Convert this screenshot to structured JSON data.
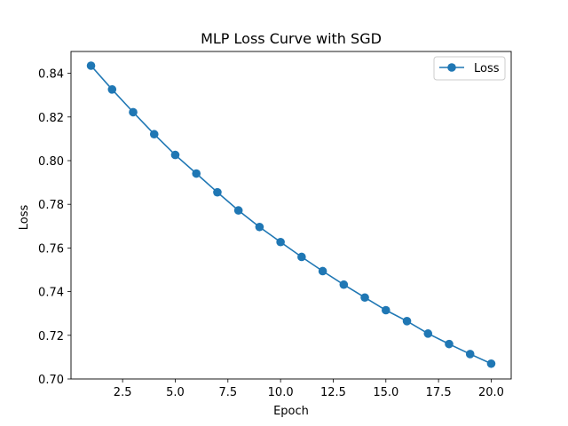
{
  "chart_data": {
    "type": "line",
    "title": "MLP Loss Curve with SGD",
    "xlabel": "Epoch",
    "ylabel": "Loss",
    "xlim": [
      0.05,
      20.95
    ],
    "ylim": [
      0.7,
      0.85
    ],
    "xticks": [
      2.5,
      5.0,
      7.5,
      10.0,
      12.5,
      15.0,
      17.5,
      20.0
    ],
    "xtick_labels": [
      "2.5",
      "5.0",
      "7.5",
      "10.0",
      "12.5",
      "15.0",
      "17.5",
      "20.0"
    ],
    "yticks": [
      0.7,
      0.72,
      0.74,
      0.76,
      0.78,
      0.8,
      0.82,
      0.84
    ],
    "ytick_labels": [
      "0.70",
      "0.72",
      "0.74",
      "0.76",
      "0.78",
      "0.80",
      "0.82",
      "0.84"
    ],
    "grid": false,
    "legend_position": "top-right",
    "series": [
      {
        "name": "Loss",
        "color": "#1f77b4",
        "marker": "circle",
        "x": [
          1,
          2,
          3,
          4,
          5,
          6,
          7,
          8,
          9,
          10,
          11,
          12,
          13,
          14,
          15,
          16,
          17,
          18,
          19,
          20
        ],
        "y": [
          0.8435,
          0.8326,
          0.8222,
          0.8121,
          0.8026,
          0.7941,
          0.7855,
          0.7772,
          0.7696,
          0.7627,
          0.7559,
          0.7494,
          0.7432,
          0.7373,
          0.7315,
          0.7265,
          0.7208,
          0.716,
          0.7114,
          0.707
        ]
      }
    ]
  }
}
